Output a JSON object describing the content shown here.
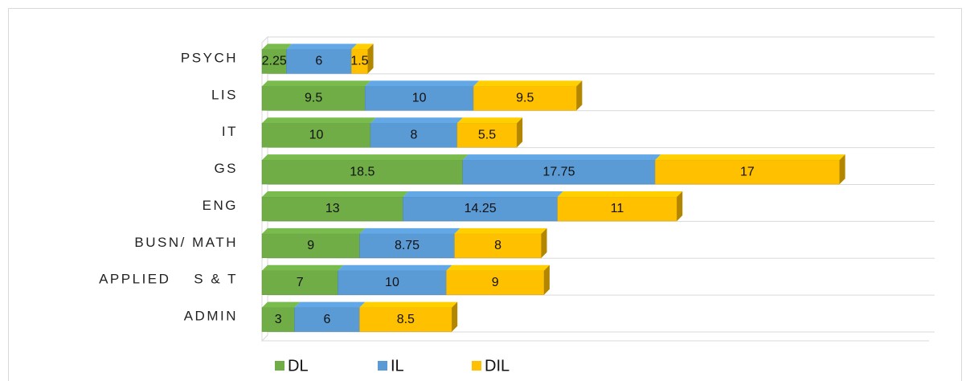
{
  "chart_data": {
    "type": "bar",
    "orientation": "horizontal",
    "stacked": true,
    "categories": [
      "PSYCH",
      "LIS",
      "IT",
      "GS",
      "ENG",
      "BUSN/ MATH",
      "APPLIED    S & T",
      "ADMIN"
    ],
    "series": [
      {
        "name": "DL",
        "color": "#70ad47",
        "values": [
          2.25,
          9.5,
          10,
          18.5,
          13,
          9,
          7,
          3
        ]
      },
      {
        "name": "IL",
        "color": "#5b9bd5",
        "values": [
          6,
          10,
          8,
          17.75,
          14.25,
          8.75,
          10,
          6
        ]
      },
      {
        "name": "DIL",
        "color": "#ffc000",
        "values": [
          1.5,
          9.5,
          5.5,
          17,
          11,
          8,
          9,
          8.5
        ]
      }
    ],
    "xlim": [
      0,
      61.5
    ],
    "grid": true,
    "legend": "bottom"
  }
}
